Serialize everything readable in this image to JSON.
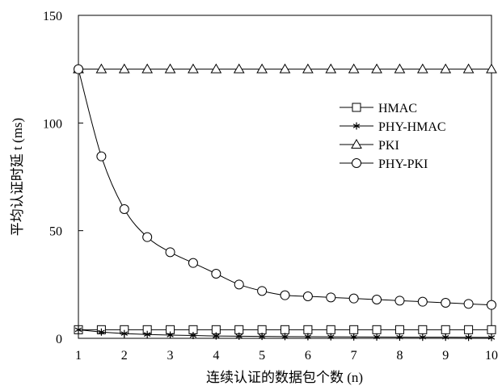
{
  "chart_data": {
    "type": "line",
    "title": "",
    "xlabel": "连续认证的数据包个数 (n)",
    "ylabel": "平均认证时延 t (ms)",
    "xlim": [
      1,
      10
    ],
    "ylim": [
      0,
      150
    ],
    "x_ticks": [
      1,
      2,
      3,
      4,
      5,
      6,
      7,
      8,
      9,
      10
    ],
    "y_ticks": [
      0,
      50,
      100,
      150
    ],
    "grid": false,
    "legend_position": "right",
    "x": [
      1,
      1.5,
      2,
      2.5,
      3,
      3.5,
      4,
      4.5,
      5,
      5.5,
      6,
      6.5,
      7,
      7.5,
      8,
      8.5,
      9,
      9.5,
      10
    ],
    "series": [
      {
        "name": "HMAC",
        "marker": "square",
        "color": "#000000",
        "values": [
          4,
          4,
          4,
          4,
          4,
          4,
          4,
          4,
          4,
          4,
          4,
          4,
          4,
          4,
          4,
          4,
          4,
          4,
          4
        ]
      },
      {
        "name": "PHY-HMAC",
        "marker": "star",
        "color": "#000000",
        "values": [
          4,
          2.9,
          2.2,
          1.8,
          1.5,
          1.3,
          1.1,
          1.0,
          0.9,
          0.8,
          0.75,
          0.7,
          0.65,
          0.6,
          0.55,
          0.5,
          0.5,
          0.45,
          0.4
        ]
      },
      {
        "name": "PKI",
        "marker": "triangle",
        "color": "#000000",
        "values": [
          125,
          125,
          125,
          125,
          125,
          125,
          125,
          125,
          125,
          125,
          125,
          125,
          125,
          125,
          125,
          125,
          125,
          125,
          125
        ]
      },
      {
        "name": "PHY-PKI",
        "marker": "circle",
        "color": "#000000",
        "values": [
          125,
          84.5,
          60,
          47,
          40,
          35,
          30,
          25,
          22,
          20,
          19.5,
          19,
          18.5,
          18,
          17.5,
          17,
          16.5,
          16,
          15.5
        ]
      }
    ]
  }
}
